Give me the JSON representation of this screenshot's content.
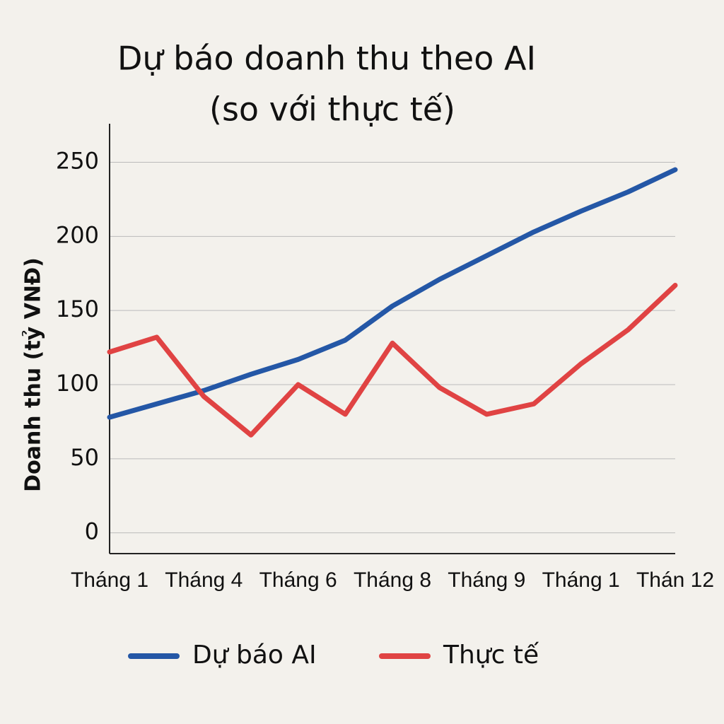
{
  "chart_data": {
    "type": "line",
    "title": [
      "Dự báo doanh thu theo AI",
      "(so với thực tế)"
    ],
    "y_label": "Doanh thu (tỷ VNĐ)",
    "categories": [
      "Tháng 1",
      null,
      "Tháng 4",
      null,
      "Tháng 6",
      null,
      "Tháng 8",
      null,
      "Tháng 9",
      null,
      "Tháng 1",
      null,
      "Thán 12"
    ],
    "series": [
      {
        "name": "Dự báo AI",
        "color": "#2457a6",
        "values": [
          78,
          87,
          96,
          107,
          117,
          130,
          153,
          171,
          187,
          203,
          217,
          230,
          245
        ]
      },
      {
        "name": "Thực tế",
        "color": "#e04343",
        "values": [
          122,
          132,
          92,
          66,
          100,
          80,
          128,
          98,
          80,
          87,
          114,
          137,
          167
        ]
      }
    ],
    "ylim": [
      -14,
      276
    ],
    "yticks": [
      0,
      50,
      100,
      150,
      200,
      250
    ],
    "grid": true
  }
}
